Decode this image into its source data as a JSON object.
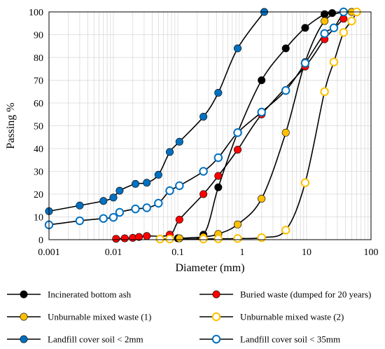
{
  "chart_data": {
    "type": "line",
    "xlabel": "Diameter (mm)",
    "ylabel": "Passing %",
    "x_scale": "log",
    "xlim": [
      0.001,
      100
    ],
    "ylim": [
      0,
      100
    ],
    "x_ticks": [
      "0.001",
      "0.01",
      "0.1",
      "1",
      "10",
      "100"
    ],
    "y_ticks": [
      "0",
      "10",
      "20",
      "30",
      "40",
      "50",
      "60",
      "70",
      "80",
      "90",
      "100"
    ],
    "grid": true,
    "legend_position": "bottom",
    "series": [
      {
        "name": "Incinerated bottom ash",
        "color": "#000000",
        "marker": "filled",
        "x": [
          0.075,
          0.1,
          0.25,
          0.425,
          0.85,
          2,
          4.75,
          9.5,
          19,
          25
        ],
        "y": [
          0.4,
          0.6,
          2.2,
          23,
          47,
          70,
          84,
          93,
          99,
          99.5
        ]
      },
      {
        "name": "Buried waste (dumped for 20 years)",
        "color": "#ff0000",
        "marker": "filled",
        "x": [
          0.011,
          0.015,
          0.02,
          0.025,
          0.033,
          0.075,
          0.106,
          0.25,
          0.425,
          0.85,
          2,
          9.5,
          19,
          37.5
        ],
        "y": [
          0.4,
          0.6,
          0.8,
          1.2,
          1.6,
          2.2,
          8.8,
          20,
          28,
          39.5,
          55,
          76,
          88,
          97
        ]
      },
      {
        "name": "Unburnable mixed waste (1)",
        "color": "#ffc000",
        "marker": "filled",
        "x": [
          0.075,
          0.106,
          0.25,
          0.425,
          0.85,
          2,
          4.75,
          9.5,
          19,
          37.5,
          50
        ],
        "y": [
          0.4,
          0.6,
          1.2,
          2.5,
          6.7,
          18,
          47,
          78,
          96,
          100,
          100
        ]
      },
      {
        "name": "Unburnable mixed waste (2)",
        "color": "#ffc000",
        "marker": "hollow",
        "x": [
          0.053,
          0.075,
          0.25,
          0.425,
          0.85,
          2,
          4.75,
          9.5,
          19,
          26.5,
          37.5,
          50,
          60
        ],
        "y": [
          0.3,
          0.3,
          0.3,
          0.4,
          0.5,
          0.9,
          4.2,
          25,
          65,
          78,
          91,
          96,
          100
        ]
      },
      {
        "name": "Landfill cover soil < 2mm",
        "color": "#0070c0",
        "marker": "filled",
        "x": [
          0.001,
          0.003,
          0.007,
          0.01,
          0.0125,
          0.022,
          0.033,
          0.05,
          0.075,
          0.106,
          0.25,
          0.425,
          0.85,
          2.2
        ],
        "y": [
          12.5,
          15,
          17,
          18.5,
          21.5,
          24.5,
          25,
          28.5,
          38.5,
          43,
          54,
          64.5,
          84,
          100
        ]
      },
      {
        "name": "Landfill cover soil < 35mm",
        "color": "#0070c0",
        "marker": "hollow",
        "x": [
          0.001,
          0.003,
          0.007,
          0.01,
          0.0125,
          0.022,
          0.033,
          0.05,
          0.075,
          0.106,
          0.25,
          0.425,
          0.85,
          2,
          4.75,
          9.5,
          19,
          26.5,
          37.5
        ],
        "y": [
          6.5,
          8.3,
          9.3,
          9.8,
          12,
          13.5,
          14,
          16,
          21.5,
          23.7,
          30,
          36,
          47,
          56,
          65.5,
          77.5,
          90.5,
          93,
          100
        ]
      }
    ]
  }
}
